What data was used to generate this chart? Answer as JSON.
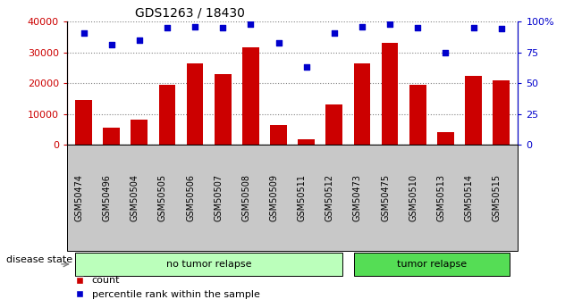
{
  "title": "GDS1263 / 18430",
  "samples": [
    "GSM50474",
    "GSM50496",
    "GSM50504",
    "GSM50505",
    "GSM50506",
    "GSM50507",
    "GSM50508",
    "GSM50509",
    "GSM50511",
    "GSM50512",
    "GSM50473",
    "GSM50475",
    "GSM50510",
    "GSM50513",
    "GSM50514",
    "GSM50515"
  ],
  "counts": [
    14500,
    5500,
    8300,
    19500,
    26500,
    23000,
    31500,
    6500,
    1800,
    13000,
    26500,
    33000,
    19500,
    4000,
    22500,
    21000
  ],
  "percentiles": [
    91,
    81,
    85,
    95,
    96,
    95,
    98,
    83,
    63,
    91,
    96,
    98,
    95,
    75,
    95,
    94
  ],
  "no_tumor_count": 10,
  "tumor_count": 6,
  "bar_color": "#cc0000",
  "dot_color": "#0000cc",
  "left_ylim": [
    0,
    40000
  ],
  "right_ylim": [
    0,
    100
  ],
  "left_yticks": [
    0,
    10000,
    20000,
    30000,
    40000
  ],
  "right_yticks": [
    0,
    25,
    50,
    75,
    100
  ],
  "right_yticklabels": [
    "0",
    "25",
    "50",
    "75",
    "100%"
  ],
  "no_tumor_label": "no tumor relapse",
  "tumor_label": "tumor relapse",
  "no_tumor_color": "#bbffbb",
  "tumor_color": "#55dd55",
  "disease_state_label": "disease state",
  "legend_count": "count",
  "legend_percentile": "percentile rank within the sample",
  "bar_width": 0.6,
  "xlabel_rotation": 90,
  "grid_color": "#000000",
  "xtick_bg_color": "#c8c8c8"
}
